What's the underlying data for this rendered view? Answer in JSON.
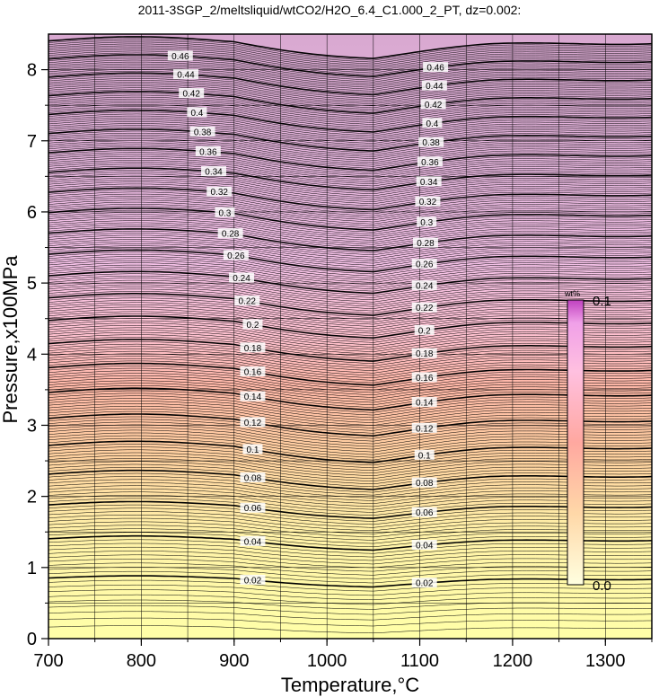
{
  "chart_data": {
    "type": "heatmap",
    "title": "2011-3SGP_2/meltsliquid/wtCO2/H2O_6.4_C1.000_2_PT, dz=0.002:",
    "xlabel": "Temperature,°C",
    "ylabel": "Pressure,x100MPa",
    "xlim": [
      700,
      1350
    ],
    "ylim": [
      0,
      8.5
    ],
    "x_ticks": [
      "700",
      "800",
      "900",
      "1000",
      "1100",
      "1200",
      "1300"
    ],
    "y_ticks": [
      "0",
      "1",
      "2",
      "3",
      "4",
      "5",
      "6",
      "7",
      "8"
    ],
    "contour_interval": 0.002,
    "labeled_contours": [
      "0.02",
      "0.04",
      "0.06",
      "0.08",
      "0.1",
      "0.12",
      "0.14",
      "0.16",
      "0.18",
      "0.2",
      "0.22",
      "0.24",
      "0.26",
      "0.28",
      "0.3",
      "0.32",
      "0.34",
      "0.36",
      "0.38",
      "0.4",
      "0.42",
      "0.44",
      "0.46"
    ],
    "colorbar": {
      "unit": "wt%",
      "min_label": "0.0",
      "max_label": "0.1",
      "colors": [
        "#ffffb0",
        "#ffd8a0",
        "#ffaaa0",
        "#ffc0d8",
        "#f8c0f0",
        "#d040c0"
      ]
    },
    "grid": true
  }
}
